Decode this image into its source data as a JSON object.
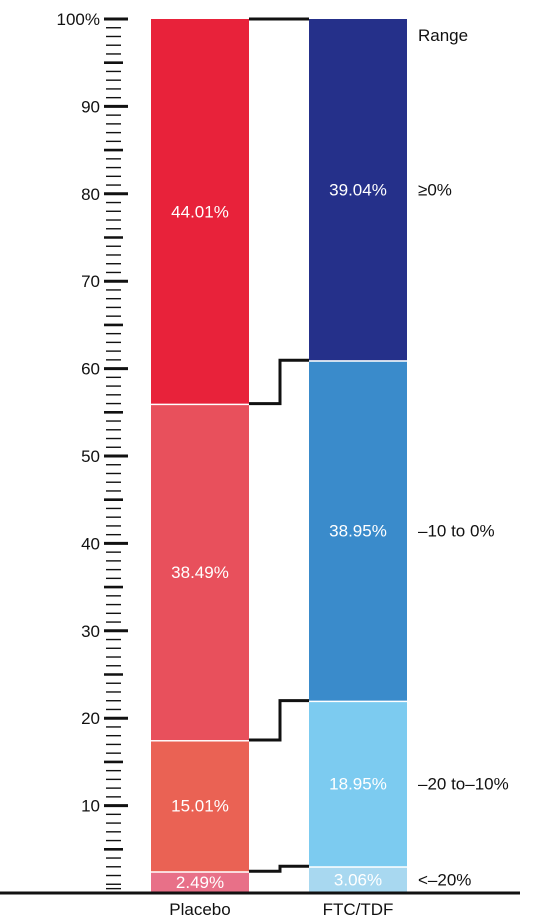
{
  "chart_data": {
    "type": "bar",
    "stacked": true,
    "categories": [
      "Placebo",
      "FTC/TDF"
    ],
    "range_header": "Range",
    "ylim": [
      0,
      100
    ],
    "y_ticks": [
      {
        "value": 10,
        "label": "10"
      },
      {
        "value": 20,
        "label": "20"
      },
      {
        "value": 30,
        "label": "30"
      },
      {
        "value": 40,
        "label": "40"
      },
      {
        "value": 50,
        "label": "50"
      },
      {
        "value": 60,
        "label": "60"
      },
      {
        "value": 70,
        "label": "70"
      },
      {
        "value": 80,
        "label": "80"
      },
      {
        "value": 90,
        "label": "90"
      },
      {
        "value": 100,
        "label": "100%"
      }
    ],
    "series": [
      {
        "name": "<–20%",
        "values": [
          2.49,
          3.06
        ],
        "value_labels": [
          "2.49%",
          "3.06%"
        ],
        "colors": [
          "#e87088",
          "#a8d8f0"
        ]
      },
      {
        "name": "–20 to–10%",
        "values": [
          15.01,
          18.95
        ],
        "value_labels": [
          "15.01%",
          "18.95%"
        ],
        "colors": [
          "#ea6254",
          "#7ccbf0"
        ]
      },
      {
        "name": "–10 to 0%",
        "values": [
          38.49,
          38.95
        ],
        "value_labels": [
          "38.49%",
          "38.95%"
        ],
        "colors": [
          "#e8505c",
          "#3a8bcb"
        ]
      },
      {
        "name": "≥0%",
        "values": [
          44.01,
          39.04
        ],
        "value_labels": [
          "44.01%",
          "39.04%"
        ],
        "colors": [
          "#e8223a",
          "#25308a"
        ]
      }
    ],
    "grid": false,
    "legend": "right"
  }
}
